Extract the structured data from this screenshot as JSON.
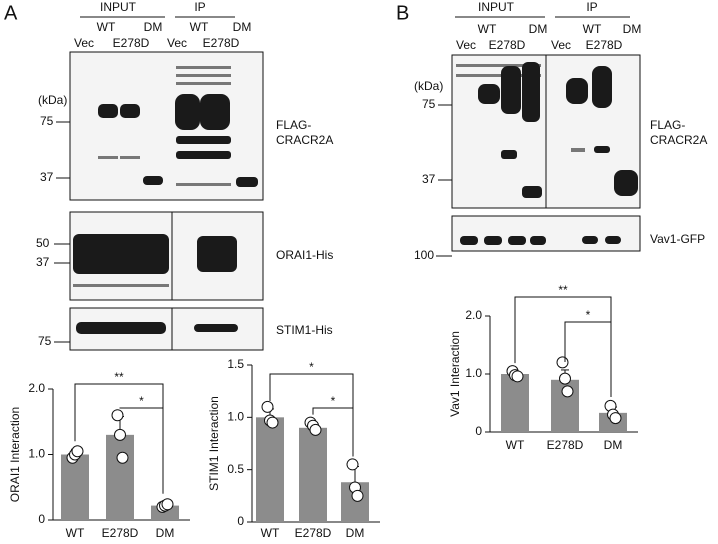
{
  "figure": {
    "panel_a": {
      "label": "A",
      "input": "INPUT",
      "ip": "IP",
      "lanes_top": [
        "WT",
        "DM",
        "WT",
        "DM"
      ],
      "lanes_bottom": [
        "Vec",
        "E278D",
        "Vec",
        "E278D"
      ],
      "kda": "(kDa)",
      "blots": [
        {
          "name": [
            "FLAG-",
            "CRACR2A"
          ],
          "markers": [
            "75",
            "37"
          ]
        },
        {
          "name": [
            "ORAI1-His"
          ],
          "markers": [
            "50",
            "37"
          ]
        },
        {
          "name": [
            "STIM1-His"
          ],
          "markers": [
            "75"
          ]
        }
      ]
    },
    "panel_b": {
      "label": "B",
      "input": "INPUT",
      "ip": "IP",
      "lanes_top": [
        "WT",
        "DM",
        "WT",
        "DM"
      ],
      "lanes_bottom": [
        "Vec",
        "E278D",
        "Vec",
        "E278D"
      ],
      "kda": "(kDa)",
      "blots": [
        {
          "name": [
            "FLAG-",
            "CRACR2A"
          ],
          "markers": [
            "75",
            "37"
          ]
        },
        {
          "name": [
            "Vav1-GFP"
          ],
          "markers": [
            "100"
          ]
        }
      ]
    }
  },
  "chart_data": [
    {
      "type": "bar",
      "y_label": "ORAI1 Interaction",
      "categories": [
        "WT",
        "E278D",
        "DM"
      ],
      "values": [
        1.0,
        1.3,
        0.22
      ],
      "errors": [
        0.08,
        0.28,
        0.03
      ],
      "points": [
        [
          0.95,
          1.0,
          1.05
        ],
        [
          1.6,
          1.3,
          0.95
        ],
        [
          0.2,
          0.22,
          0.24
        ]
      ],
      "color": "#8c8c8c",
      "ylim": [
        0,
        2.0
      ],
      "yticks": [
        0,
        {
          "value": 1,
          "label": "1.0"
        },
        {
          "value": 2,
          "label": "2.0"
        }
      ],
      "annotations": [
        "**",
        "*"
      ]
    },
    {
      "type": "bar",
      "y_label": "STIM1 Interaction",
      "categories": [
        "WT",
        "E278D",
        "DM"
      ],
      "values": [
        1.0,
        0.9,
        0.38
      ],
      "errors": [
        0.08,
        0.05,
        0.15
      ],
      "points": [
        [
          1.1,
          0.97,
          0.95
        ],
        [
          0.95,
          0.92,
          0.88
        ],
        [
          0.55,
          0.33,
          0.25
        ]
      ],
      "color": "#8c8c8c",
      "ylim": [
        0,
        1.5
      ],
      "yticks": [
        0,
        0.5,
        {
          "value": 1,
          "label": "1.0"
        },
        1.5
      ],
      "annotations": [
        "*",
        "*"
      ]
    },
    {
      "type": "bar",
      "y_label": "Vav1 Interaction",
      "categories": [
        "WT",
        "E278D",
        "DM"
      ],
      "values": [
        1.0,
        0.9,
        0.33
      ],
      "errors": [
        0.05,
        0.17,
        0.1
      ],
      "points": [
        [
          1.05,
          0.98,
          0.96
        ],
        [
          1.2,
          0.92,
          0.7
        ],
        [
          0.45,
          0.3,
          0.24
        ]
      ],
      "color": "#8c8c8c",
      "ylim": [
        0,
        2.0
      ],
      "yticks": [
        0,
        {
          "value": 1,
          "label": "1.0"
        },
        {
          "value": 2,
          "label": "2.0"
        }
      ],
      "annotations": [
        "**",
        "*"
      ]
    }
  ]
}
